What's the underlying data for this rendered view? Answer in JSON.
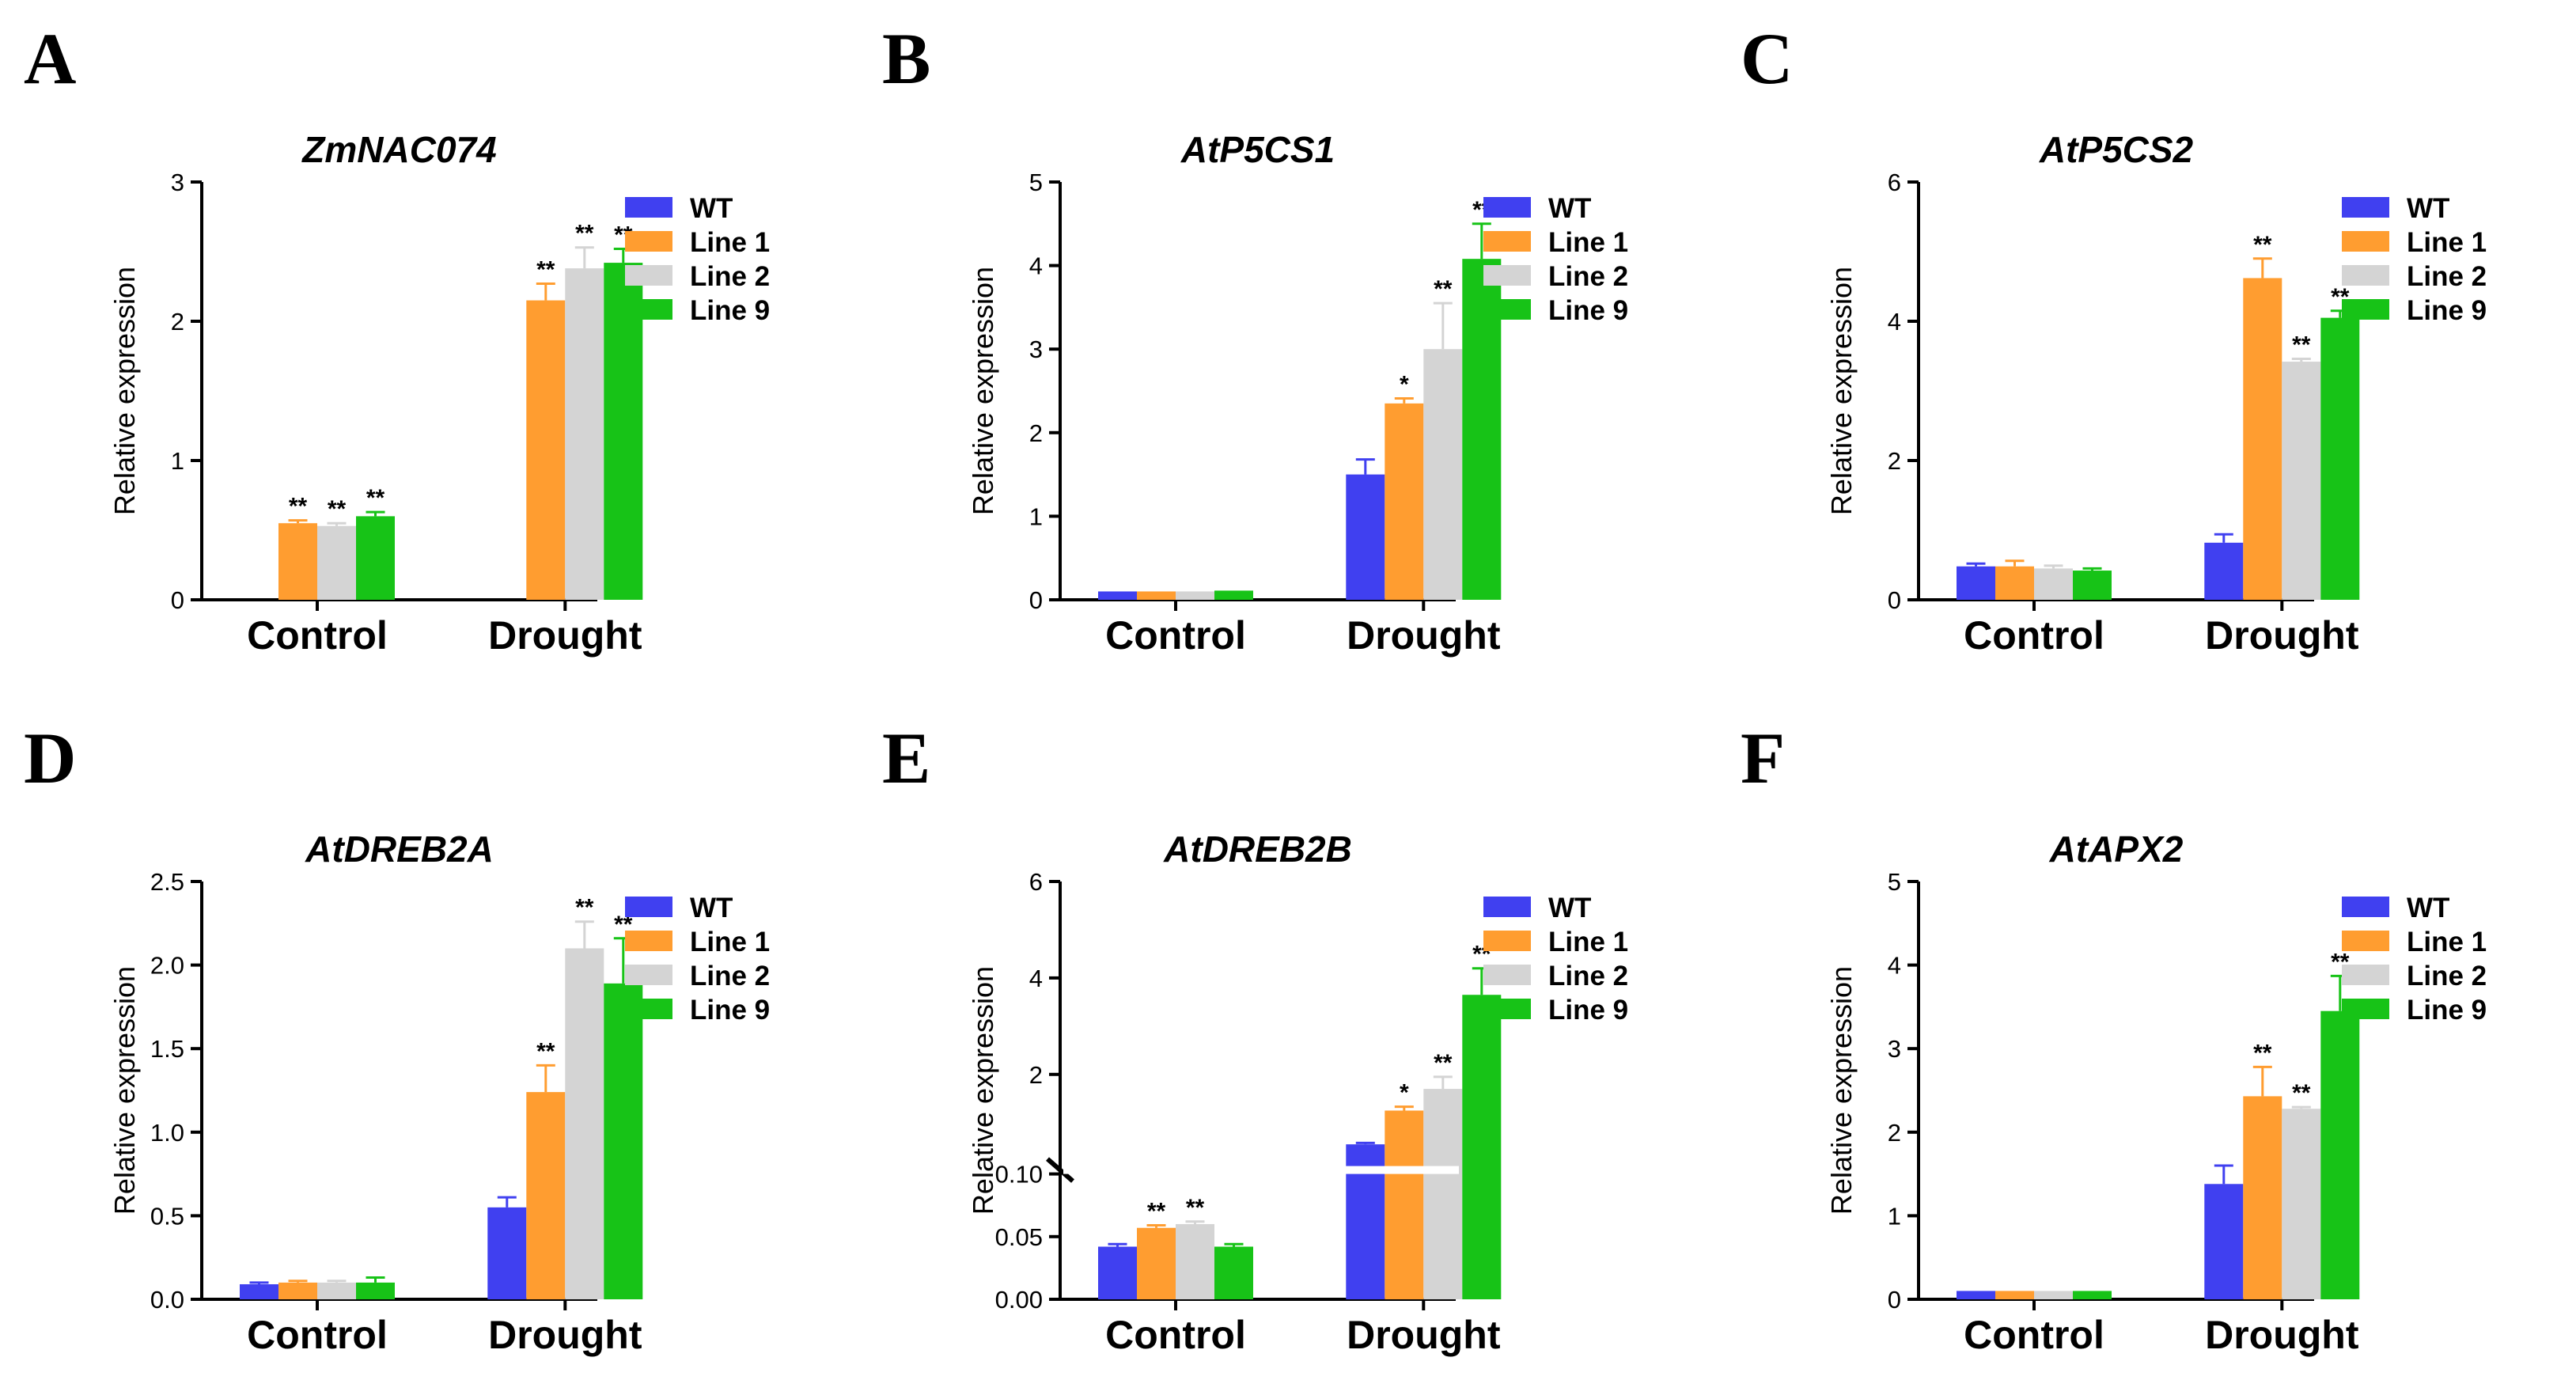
{
  "figure": {
    "groups": [
      "Control",
      "Drought"
    ],
    "legend": [
      "WT",
      "Line 1",
      "Line 2",
      "Line 9"
    ],
    "colors": [
      "#4040f0",
      "#ff9d30",
      "#d4d4d4",
      "#17c317"
    ],
    "ylabel": "Relative expression"
  },
  "chart_data": [
    {
      "type": "bar",
      "panel": "A",
      "title": "ZmNAC074",
      "categories": [
        "Control",
        "Drought"
      ],
      "ylabel": "Relative expression",
      "ylim": [
        0,
        3
      ],
      "yticks": [
        "0",
        "1",
        "2",
        "3"
      ],
      "ytick_values": [
        0,
        1,
        2,
        3
      ],
      "series": [
        {
          "name": "WT",
          "values": [
            null,
            null
          ],
          "errors": [
            0,
            0
          ],
          "sig": [
            "",
            ""
          ]
        },
        {
          "name": "Line 1",
          "values": [
            0.55,
            2.15
          ],
          "errors": [
            0.02,
            0.12
          ],
          "sig": [
            "**",
            "**"
          ]
        },
        {
          "name": "Line 2",
          "values": [
            0.53,
            2.38
          ],
          "errors": [
            0.02,
            0.15
          ],
          "sig": [
            "**",
            "**"
          ]
        },
        {
          "name": "Line 9",
          "values": [
            0.6,
            2.42
          ],
          "errors": [
            0.03,
            0.1
          ],
          "sig": [
            "**",
            "**"
          ]
        }
      ]
    },
    {
      "type": "bar",
      "panel": "B",
      "title": "AtP5CS1",
      "categories": [
        "Control",
        "Drought"
      ],
      "ylabel": "Relative expression",
      "ylim": [
        0,
        5
      ],
      "yticks": [
        "0",
        "1",
        "2",
        "3",
        "4",
        "5"
      ],
      "ytick_values": [
        0,
        1,
        2,
        3,
        4,
        5
      ],
      "series": [
        {
          "name": "WT",
          "values": [
            0.1,
            1.5
          ],
          "errors": [
            0,
            0.18
          ],
          "sig": [
            "",
            ""
          ]
        },
        {
          "name": "Line 1",
          "values": [
            0.1,
            2.35
          ],
          "errors": [
            0,
            0.06
          ],
          "sig": [
            "",
            "*"
          ]
        },
        {
          "name": "Line 2",
          "values": [
            0.1,
            3.0
          ],
          "errors": [
            0,
            0.55
          ],
          "sig": [
            "",
            "**"
          ]
        },
        {
          "name": "Line 9",
          "values": [
            0.11,
            4.08
          ],
          "errors": [
            0,
            0.42
          ],
          "sig": [
            "",
            "**"
          ]
        }
      ]
    },
    {
      "type": "bar",
      "panel": "C",
      "title": "AtP5CS2",
      "categories": [
        "Control",
        "Drought"
      ],
      "ylabel": "Relative expression",
      "ylim": [
        0,
        6
      ],
      "yticks": [
        "0",
        "2",
        "4",
        "6"
      ],
      "ytick_values": [
        0,
        2,
        4,
        6
      ],
      "series": [
        {
          "name": "WT",
          "values": [
            0.48,
            0.82
          ],
          "errors": [
            0.04,
            0.12
          ],
          "sig": [
            "",
            ""
          ]
        },
        {
          "name": "Line 1",
          "values": [
            0.48,
            4.62
          ],
          "errors": [
            0.08,
            0.28
          ],
          "sig": [
            "",
            "**"
          ]
        },
        {
          "name": "Line 2",
          "values": [
            0.45,
            3.42
          ],
          "errors": [
            0.04,
            0.04
          ],
          "sig": [
            "",
            "**"
          ]
        },
        {
          "name": "Line 9",
          "values": [
            0.42,
            4.05
          ],
          "errors": [
            0.03,
            0.1
          ],
          "sig": [
            "",
            "**"
          ]
        }
      ]
    },
    {
      "type": "bar",
      "panel": "D",
      "title": "AtDREB2A",
      "categories": [
        "Control",
        "Drought"
      ],
      "ylabel": "Relative expression",
      "ylim": [
        0,
        2.5
      ],
      "yticks": [
        "0.0",
        "0.5",
        "1.0",
        "1.5",
        "2.0",
        "2.5"
      ],
      "ytick_values": [
        0,
        0.5,
        1,
        1.5,
        2,
        2.5
      ],
      "series": [
        {
          "name": "WT",
          "values": [
            0.09,
            0.55
          ],
          "errors": [
            0.01,
            0.06
          ],
          "sig": [
            "",
            ""
          ]
        },
        {
          "name": "Line 1",
          "values": [
            0.1,
            1.24
          ],
          "errors": [
            0.01,
            0.16
          ],
          "sig": [
            "",
            "**"
          ]
        },
        {
          "name": "Line 2",
          "values": [
            0.1,
            2.1
          ],
          "errors": [
            0.01,
            0.16
          ],
          "sig": [
            "",
            "**"
          ]
        },
        {
          "name": "Line 9",
          "values": [
            0.1,
            1.89
          ],
          "errors": [
            0.03,
            0.27
          ],
          "sig": [
            "",
            "**"
          ]
        }
      ]
    },
    {
      "type": "bar",
      "panel": "E",
      "title": "AtDREB2B",
      "categories": [
        "Control",
        "Drought"
      ],
      "ylabel": "Relative expression",
      "broken_axis": true,
      "yticks": [
        "0.00",
        "0.05",
        "0.10",
        "2",
        "4",
        "6"
      ],
      "ytick_values": [
        0,
        0.05,
        0.1,
        2,
        4,
        6
      ],
      "series": [
        {
          "name": "WT",
          "values": [
            0.042,
            0.55
          ],
          "errors": [
            0.002,
            0.03
          ],
          "sig": [
            "",
            ""
          ]
        },
        {
          "name": "Line 1",
          "values": [
            0.057,
            1.25
          ],
          "errors": [
            0.002,
            0.08
          ],
          "sig": [
            "**",
            "*"
          ]
        },
        {
          "name": "Line 2",
          "values": [
            0.06,
            1.7
          ],
          "errors": [
            0.002,
            0.25
          ],
          "sig": [
            "**",
            "**"
          ]
        },
        {
          "name": "Line 9",
          "values": [
            0.042,
            3.65
          ],
          "errors": [
            0.002,
            0.55
          ],
          "sig": [
            "",
            "**"
          ]
        }
      ]
    },
    {
      "type": "bar",
      "panel": "F",
      "title": "AtAPX2",
      "categories": [
        "Control",
        "Drought"
      ],
      "ylabel": "Relative expression",
      "ylim": [
        0,
        5
      ],
      "yticks": [
        "0",
        "1",
        "2",
        "3",
        "4",
        "5"
      ],
      "ytick_values": [
        0,
        1,
        2,
        3,
        4,
        5
      ],
      "series": [
        {
          "name": "WT",
          "values": [
            0.1,
            1.38
          ],
          "errors": [
            0,
            0.22
          ],
          "sig": [
            "",
            ""
          ]
        },
        {
          "name": "Line 1",
          "values": [
            0.1,
            2.43
          ],
          "errors": [
            0,
            0.35
          ],
          "sig": [
            "",
            "**"
          ]
        },
        {
          "name": "Line 2",
          "values": [
            0.1,
            2.28
          ],
          "errors": [
            0,
            0.02
          ],
          "sig": [
            "",
            "**"
          ]
        },
        {
          "name": "Line 9",
          "values": [
            0.1,
            3.45
          ],
          "errors": [
            0,
            0.42
          ],
          "sig": [
            "",
            "**"
          ]
        }
      ]
    }
  ]
}
